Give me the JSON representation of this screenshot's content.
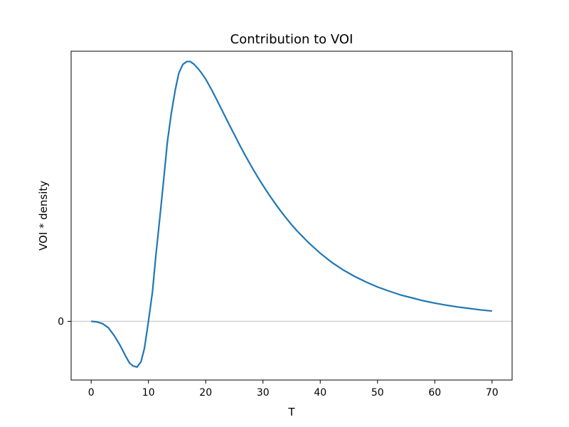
{
  "chart_data": {
    "type": "line",
    "title": "Contribution to VOI",
    "xlabel": "T",
    "ylabel": "VOI * density",
    "xlim": [
      -3.5,
      73.5
    ],
    "ylim": [
      -0.2,
      0.92
    ],
    "x_ticks": [
      0,
      10,
      20,
      30,
      40,
      50,
      60,
      70
    ],
    "y_ticks": [
      0
    ],
    "y_tick_labels": [
      "0"
    ],
    "grid": false,
    "reference_line": {
      "y": 0,
      "color": "#d3d3d3"
    },
    "series": [
      {
        "name": "VOI * density",
        "color": "#1f77b4",
        "x": [
          0,
          1,
          2,
          3,
          4,
          5,
          6,
          6.7,
          7.3,
          8,
          8.7,
          9.3,
          10,
          10.7,
          11.3,
          12,
          12.7,
          13.3,
          14,
          14.7,
          15.3,
          16,
          16.7,
          17.3,
          18,
          18.7,
          19.3,
          20,
          21,
          22,
          23,
          24,
          25,
          26,
          27,
          28,
          29,
          30,
          31,
          32,
          33,
          34,
          35,
          36,
          38,
          40,
          42,
          44,
          46,
          48,
          50,
          52,
          54,
          56,
          58,
          60,
          62,
          64,
          66,
          68,
          70
        ],
        "y": [
          0,
          -0.002,
          -0.008,
          -0.022,
          -0.048,
          -0.08,
          -0.118,
          -0.142,
          -0.152,
          -0.156,
          -0.138,
          -0.092,
          0,
          0.1,
          0.225,
          0.355,
          0.49,
          0.61,
          0.71,
          0.79,
          0.845,
          0.875,
          0.885,
          0.885,
          0.875,
          0.86,
          0.845,
          0.825,
          0.79,
          0.752,
          0.713,
          0.674,
          0.636,
          0.598,
          0.562,
          0.527,
          0.494,
          0.463,
          0.433,
          0.405,
          0.378,
          0.353,
          0.329,
          0.307,
          0.267,
          0.232,
          0.201,
          0.175,
          0.153,
          0.134,
          0.117,
          0.103,
          0.09,
          0.08,
          0.07,
          0.062,
          0.055,
          0.049,
          0.044,
          0.039,
          0.035
        ]
      }
    ]
  }
}
